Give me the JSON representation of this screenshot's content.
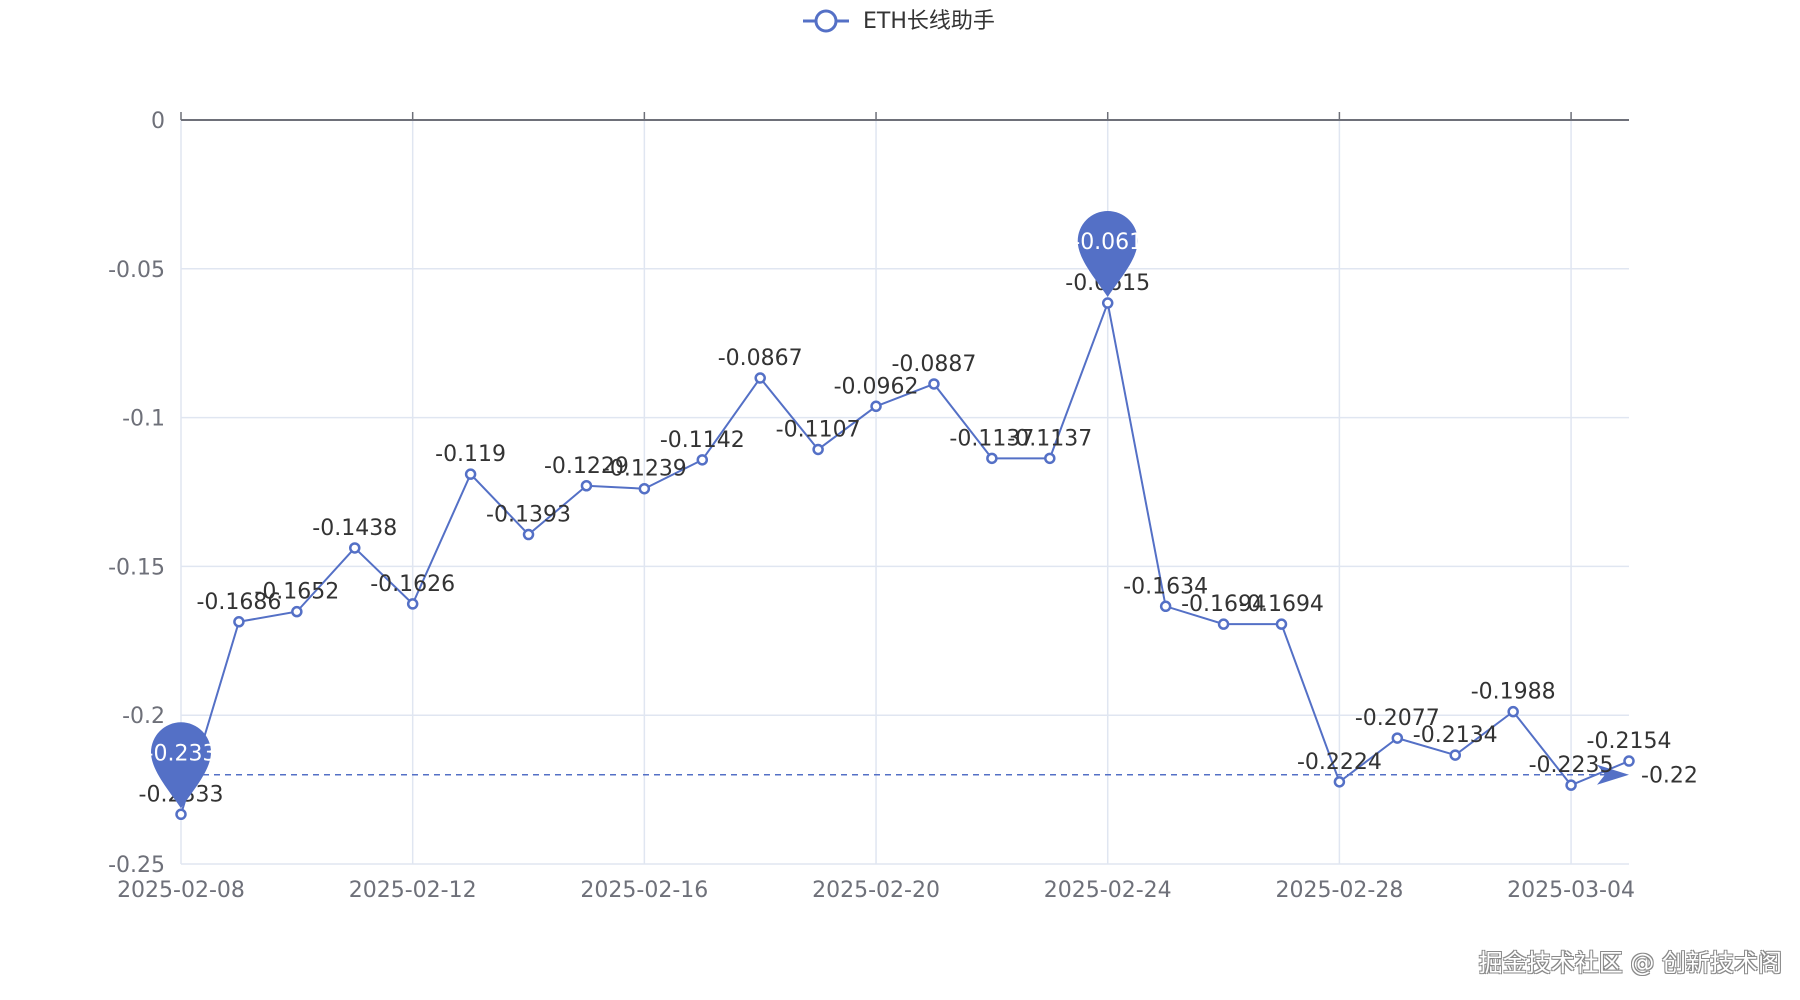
{
  "watermark": "掘金技术社区 @ 创新技术阁",
  "colors": {
    "series": "#5470c6",
    "axis": "#6e7079",
    "grid": "#e0e6f1",
    "label": "#333333"
  },
  "chart_data": {
    "type": "line",
    "legend": {
      "label": "ETH长线助手",
      "position": "top-center"
    },
    "x": [
      "2025-02-08",
      "2025-02-09",
      "2025-02-10",
      "2025-02-11",
      "2025-02-12",
      "2025-02-13",
      "2025-02-14",
      "2025-02-15",
      "2025-02-16",
      "2025-02-17",
      "2025-02-18",
      "2025-02-19",
      "2025-02-20",
      "2025-02-21",
      "2025-02-22",
      "2025-02-23",
      "2025-02-24",
      "2025-02-25",
      "2025-02-26",
      "2025-02-27",
      "2025-02-28",
      "2025-03-01",
      "2025-03-02",
      "2025-03-03",
      "2025-03-04",
      "2025-03-05"
    ],
    "xticks": [
      "2025-02-08",
      "2025-02-12",
      "2025-02-16",
      "2025-02-20",
      "2025-02-24",
      "2025-02-28",
      "2025-03-04"
    ],
    "series": [
      {
        "name": "ETH长线助手",
        "values": [
          -0.2333,
          -0.1686,
          -0.1652,
          -0.1438,
          -0.1626,
          -0.119,
          -0.1393,
          -0.1229,
          -0.1239,
          -0.1142,
          -0.0867,
          -0.1107,
          -0.0962,
          -0.0887,
          -0.1137,
          -0.1137,
          -0.0615,
          -0.1634,
          -0.1694,
          -0.1694,
          -0.2224,
          -0.2077,
          -0.2134,
          -0.1988,
          -0.2235,
          -0.2154
        ],
        "labels": [
          "-0.2333",
          "-0.1686",
          "-0.1652",
          "-0.1438",
          "-0.1626",
          "-0.119",
          "-0.1393",
          "-0.1229",
          "-0.1239",
          "-0.1142",
          "-0.0867",
          "-0.1107",
          "-0.0962",
          "-0.0887",
          "-0.1137",
          "-0.1137",
          "-0.0615",
          "-0.1634",
          "-0.1694",
          "-0.1694",
          "-0.2224",
          "-0.2077",
          "-0.2134",
          "-0.1988",
          "-0.2235",
          "-0.2154"
        ]
      }
    ],
    "yticks": [
      "0",
      "-0.05",
      "-0.1",
      "-0.15",
      "-0.2",
      "-0.25"
    ],
    "ylim": [
      -0.25,
      0
    ],
    "mark_points": [
      {
        "label": "-0.233",
        "index": 0,
        "value": -0.2333
      },
      {
        "label": "-0.061",
        "index": 16,
        "value": -0.0615
      }
    ],
    "mark_line": {
      "label": "-0.22",
      "value": -0.22
    },
    "grid": true
  }
}
